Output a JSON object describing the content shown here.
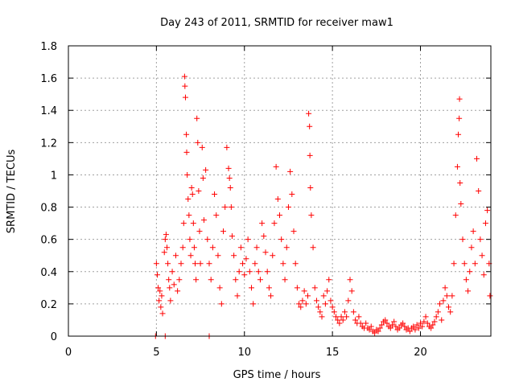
{
  "chart_data": {
    "type": "scatter",
    "title": "Day 243 of 2011, SRMTID for receiver maw1",
    "xlabel": "GPS time / hours",
    "ylabel": "SRMTID / TECUs",
    "xlim": [
      0,
      24
    ],
    "ylim": [
      0,
      1.8
    ],
    "xticks": [
      0,
      5,
      10,
      15,
      20
    ],
    "xtick_labels": [
      "0",
      "5",
      "10",
      "15",
      "20"
    ],
    "yticks": [
      0,
      0.2,
      0.4,
      0.6,
      0.8,
      1,
      1.2,
      1.4,
      1.6,
      1.8
    ],
    "ytick_labels": [
      "0",
      "0.2",
      "0.4",
      "0.6",
      "0.8",
      "1",
      "1.2",
      "1.4",
      "1.6",
      "1.8"
    ],
    "grid": true,
    "marker": "+",
    "marker_color": "#ff0000",
    "series": [
      {
        "name": "",
        "points": [
          [
            4.95,
            0.0
          ],
          [
            5.5,
            0.0
          ],
          [
            8.0,
            0.0
          ],
          [
            5.0,
            0.45
          ],
          [
            5.05,
            0.38
          ],
          [
            5.1,
            0.3
          ],
          [
            5.15,
            0.22
          ],
          [
            5.2,
            0.28
          ],
          [
            5.25,
            0.18
          ],
          [
            5.3,
            0.25
          ],
          [
            5.35,
            0.14
          ],
          [
            5.45,
            0.52
          ],
          [
            5.5,
            0.6
          ],
          [
            5.55,
            0.63
          ],
          [
            5.6,
            0.55
          ],
          [
            5.65,
            0.45
          ],
          [
            5.7,
            0.35
          ],
          [
            5.75,
            0.3
          ],
          [
            5.8,
            0.22
          ],
          [
            5.9,
            0.4
          ],
          [
            6.0,
            0.32
          ],
          [
            6.1,
            0.5
          ],
          [
            6.2,
            0.28
          ],
          [
            6.3,
            0.35
          ],
          [
            6.4,
            0.45
          ],
          [
            6.5,
            0.55
          ],
          [
            6.55,
            0.7
          ],
          [
            6.6,
            1.61
          ],
          [
            6.62,
            1.55
          ],
          [
            6.65,
            1.48
          ],
          [
            6.7,
            1.25
          ],
          [
            6.72,
            1.14
          ],
          [
            6.75,
            1.0
          ],
          [
            6.8,
            0.85
          ],
          [
            6.85,
            0.75
          ],
          [
            6.9,
            0.6
          ],
          [
            6.95,
            0.5
          ],
          [
            7.0,
            0.92
          ],
          [
            7.05,
            0.88
          ],
          [
            7.1,
            0.7
          ],
          [
            7.15,
            0.55
          ],
          [
            7.2,
            0.45
          ],
          [
            7.25,
            0.35
          ],
          [
            7.3,
            1.35
          ],
          [
            7.35,
            1.2
          ],
          [
            7.4,
            0.9
          ],
          [
            7.45,
            0.65
          ],
          [
            7.5,
            0.45
          ],
          [
            7.6,
            1.17
          ],
          [
            7.65,
            0.98
          ],
          [
            7.7,
            0.72
          ],
          [
            7.8,
            1.03
          ],
          [
            7.9,
            0.6
          ],
          [
            8.0,
            0.45
          ],
          [
            8.1,
            0.35
          ],
          [
            8.2,
            0.55
          ],
          [
            8.3,
            0.88
          ],
          [
            8.4,
            0.75
          ],
          [
            8.5,
            0.5
          ],
          [
            8.6,
            0.3
          ],
          [
            8.7,
            0.2
          ],
          [
            8.8,
            0.65
          ],
          [
            8.9,
            0.8
          ],
          [
            9.0,
            1.17
          ],
          [
            9.1,
            1.04
          ],
          [
            9.15,
            0.98
          ],
          [
            9.2,
            0.92
          ],
          [
            9.25,
            0.8
          ],
          [
            9.3,
            0.62
          ],
          [
            9.4,
            0.5
          ],
          [
            9.5,
            0.35
          ],
          [
            9.6,
            0.25
          ],
          [
            9.7,
            0.4
          ],
          [
            9.8,
            0.55
          ],
          [
            9.9,
            0.45
          ],
          [
            10.0,
            0.38
          ],
          [
            10.1,
            0.48
          ],
          [
            10.2,
            0.6
          ],
          [
            10.3,
            0.4
          ],
          [
            10.4,
            0.3
          ],
          [
            10.5,
            0.2
          ],
          [
            10.6,
            0.45
          ],
          [
            10.7,
            0.55
          ],
          [
            10.8,
            0.4
          ],
          [
            10.9,
            0.35
          ],
          [
            11.0,
            0.7
          ],
          [
            11.1,
            0.62
          ],
          [
            11.2,
            0.52
          ],
          [
            11.3,
            0.4
          ],
          [
            11.4,
            0.3
          ],
          [
            11.5,
            0.25
          ],
          [
            11.6,
            0.5
          ],
          [
            11.7,
            0.7
          ],
          [
            11.8,
            1.05
          ],
          [
            11.9,
            0.85
          ],
          [
            12.0,
            0.75
          ],
          [
            12.1,
            0.6
          ],
          [
            12.2,
            0.45
          ],
          [
            12.3,
            0.35
          ],
          [
            12.4,
            0.55
          ],
          [
            12.5,
            0.8
          ],
          [
            12.6,
            1.02
          ],
          [
            12.7,
            0.88
          ],
          [
            12.8,
            0.65
          ],
          [
            12.9,
            0.45
          ],
          [
            13.0,
            0.3
          ],
          [
            13.1,
            0.2
          ],
          [
            13.2,
            0.18
          ],
          [
            13.3,
            0.22
          ],
          [
            13.4,
            0.28
          ],
          [
            13.5,
            0.2
          ],
          [
            13.6,
            0.25
          ],
          [
            13.65,
            1.38
          ],
          [
            13.7,
            1.3
          ],
          [
            13.72,
            1.12
          ],
          [
            13.75,
            0.92
          ],
          [
            13.8,
            0.75
          ],
          [
            13.9,
            0.55
          ],
          [
            14.0,
            0.3
          ],
          [
            14.1,
            0.22
          ],
          [
            14.2,
            0.18
          ],
          [
            14.3,
            0.15
          ],
          [
            14.4,
            0.12
          ],
          [
            14.5,
            0.25
          ],
          [
            14.6,
            0.2
          ],
          [
            14.7,
            0.28
          ],
          [
            14.8,
            0.35
          ],
          [
            14.9,
            0.22
          ],
          [
            15.0,
            0.18
          ],
          [
            15.1,
            0.15
          ],
          [
            15.2,
            0.12
          ],
          [
            15.3,
            0.1
          ],
          [
            15.4,
            0.08
          ],
          [
            15.5,
            0.12
          ],
          [
            15.6,
            0.1
          ],
          [
            15.7,
            0.15
          ],
          [
            15.8,
            0.12
          ],
          [
            15.9,
            0.22
          ],
          [
            16.0,
            0.35
          ],
          [
            16.1,
            0.28
          ],
          [
            16.2,
            0.15
          ],
          [
            16.3,
            0.1
          ],
          [
            16.4,
            0.08
          ],
          [
            16.5,
            0.12
          ],
          [
            16.6,
            0.08
          ],
          [
            16.7,
            0.06
          ],
          [
            16.8,
            0.05
          ],
          [
            16.9,
            0.08
          ],
          [
            17.0,
            0.05
          ],
          [
            17.1,
            0.04
          ],
          [
            17.2,
            0.06
          ],
          [
            17.3,
            0.03
          ],
          [
            17.4,
            0.02
          ],
          [
            17.5,
            0.04
          ],
          [
            17.6,
            0.03
          ],
          [
            17.7,
            0.05
          ],
          [
            17.8,
            0.07
          ],
          [
            17.9,
            0.09
          ],
          [
            18.0,
            0.1
          ],
          [
            18.1,
            0.08
          ],
          [
            18.2,
            0.06
          ],
          [
            18.3,
            0.05
          ],
          [
            18.4,
            0.07
          ],
          [
            18.5,
            0.09
          ],
          [
            18.6,
            0.06
          ],
          [
            18.7,
            0.04
          ],
          [
            18.8,
            0.05
          ],
          [
            18.9,
            0.07
          ],
          [
            19.0,
            0.08
          ],
          [
            19.1,
            0.06
          ],
          [
            19.2,
            0.04
          ],
          [
            19.3,
            0.05
          ],
          [
            19.4,
            0.03
          ],
          [
            19.5,
            0.05
          ],
          [
            19.6,
            0.06
          ],
          [
            19.7,
            0.04
          ],
          [
            19.8,
            0.07
          ],
          [
            19.9,
            0.05
          ],
          [
            20.0,
            0.08
          ],
          [
            20.1,
            0.06
          ],
          [
            20.2,
            0.09
          ],
          [
            20.3,
            0.12
          ],
          [
            20.4,
            0.08
          ],
          [
            20.5,
            0.06
          ],
          [
            20.6,
            0.05
          ],
          [
            20.7,
            0.07
          ],
          [
            20.8,
            0.09
          ],
          [
            20.9,
            0.12
          ],
          [
            21.0,
            0.15
          ],
          [
            21.1,
            0.2
          ],
          [
            21.2,
            0.1
          ],
          [
            21.3,
            0.22
          ],
          [
            21.4,
            0.3
          ],
          [
            21.5,
            0.25
          ],
          [
            21.6,
            0.18
          ],
          [
            21.7,
            0.15
          ],
          [
            21.8,
            0.25
          ],
          [
            21.9,
            0.45
          ],
          [
            22.0,
            0.75
          ],
          [
            22.1,
            1.05
          ],
          [
            22.15,
            1.25
          ],
          [
            22.2,
            1.35
          ],
          [
            22.22,
            1.47
          ],
          [
            22.25,
            0.95
          ],
          [
            22.3,
            0.82
          ],
          [
            22.4,
            0.6
          ],
          [
            22.5,
            0.45
          ],
          [
            22.6,
            0.35
          ],
          [
            22.7,
            0.28
          ],
          [
            22.8,
            0.4
          ],
          [
            22.9,
            0.55
          ],
          [
            23.0,
            0.65
          ],
          [
            23.1,
            0.45
          ],
          [
            23.2,
            1.1
          ],
          [
            23.3,
            0.9
          ],
          [
            23.4,
            0.6
          ],
          [
            23.5,
            0.5
          ],
          [
            23.6,
            0.38
          ],
          [
            23.7,
            0.7
          ],
          [
            23.8,
            0.78
          ],
          [
            23.9,
            0.45
          ],
          [
            23.95,
            0.25
          ]
        ]
      }
    ]
  }
}
